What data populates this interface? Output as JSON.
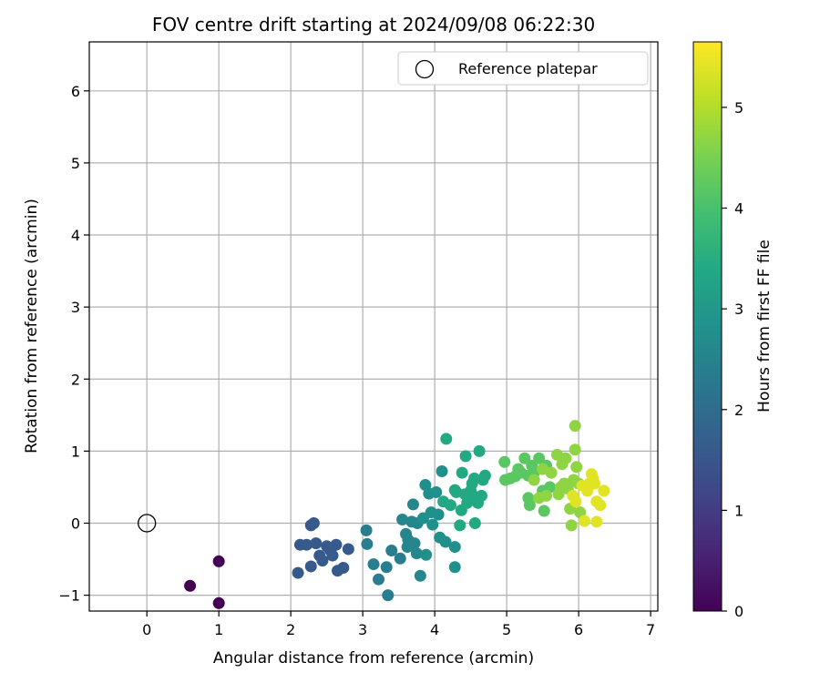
{
  "chart_data": {
    "type": "scatter",
    "title": "FOV centre drift starting at 2024/09/08 06:22:30",
    "xlabel": "Angular distance from reference (arcmin)",
    "ylabel": "Rotation from reference (arcmin)",
    "xlim": [
      -0.8,
      7.1
    ],
    "ylim": [
      -1.22,
      6.68
    ],
    "xticks": [
      0,
      1,
      2,
      3,
      4,
      5,
      6,
      7
    ],
    "yticks": [
      -1,
      0,
      1,
      2,
      3,
      4,
      5,
      6
    ],
    "grid": true,
    "legend": {
      "position": "top-right",
      "entries": [
        "Reference platepar"
      ]
    },
    "reference_point": {
      "x": 0,
      "y": 0,
      "label": "Reference platepar"
    },
    "colorbar": {
      "label": "Hours from first FF file",
      "colormap": "viridis",
      "range": [
        0,
        5.65
      ],
      "ticks": [
        0,
        1,
        2,
        3,
        4,
        5
      ]
    },
    "points": [
      [
        0.6,
        -0.87,
        0.0
      ],
      [
        1.0,
        -0.53,
        0.0
      ],
      [
        1.0,
        -1.11,
        0.0
      ],
      [
        2.1,
        -0.69,
        1.6
      ],
      [
        2.13,
        -0.3,
        1.6
      ],
      [
        2.22,
        -0.3,
        1.6
      ],
      [
        2.28,
        -0.03,
        1.6
      ],
      [
        2.32,
        0.0,
        1.6
      ],
      [
        2.28,
        -0.6,
        1.6
      ],
      [
        2.35,
        -0.28,
        1.6
      ],
      [
        2.4,
        -0.45,
        1.6
      ],
      [
        2.44,
        -0.52,
        1.6
      ],
      [
        2.5,
        -0.32,
        1.6
      ],
      [
        2.55,
        -0.38,
        1.6
      ],
      [
        2.58,
        -0.45,
        1.6
      ],
      [
        2.63,
        -0.3,
        1.6
      ],
      [
        2.65,
        -0.66,
        1.6
      ],
      [
        2.73,
        -0.62,
        1.6
      ],
      [
        2.8,
        -0.36,
        1.6
      ],
      [
        3.05,
        -0.1,
        2.4
      ],
      [
        3.06,
        -0.29,
        2.4
      ],
      [
        3.15,
        -0.57,
        2.4
      ],
      [
        3.22,
        -0.78,
        2.4
      ],
      [
        3.33,
        -0.61,
        2.4
      ],
      [
        3.35,
        -1.0,
        2.4
      ],
      [
        3.4,
        -0.38,
        2.4
      ],
      [
        3.52,
        -0.49,
        2.4
      ],
      [
        3.55,
        0.05,
        2.6
      ],
      [
        3.6,
        -0.15,
        2.6
      ],
      [
        3.63,
        -0.23,
        2.6
      ],
      [
        3.62,
        -0.33,
        2.6
      ],
      [
        3.68,
        0.02,
        2.6
      ],
      [
        3.7,
        0.26,
        2.6
      ],
      [
        3.72,
        -0.28,
        2.6
      ],
      [
        3.75,
        -0.42,
        2.6
      ],
      [
        3.76,
        0.0,
        2.6
      ],
      [
        3.8,
        -0.73,
        2.6
      ],
      [
        3.84,
        0.07,
        2.8
      ],
      [
        3.87,
        0.53,
        2.8
      ],
      [
        3.88,
        -0.44,
        2.8
      ],
      [
        3.92,
        0.41,
        2.8
      ],
      [
        3.95,
        0.15,
        2.8
      ],
      [
        3.97,
        -0.02,
        2.8
      ],
      [
        4.02,
        0.43,
        2.8
      ],
      [
        4.05,
        0.12,
        2.8
      ],
      [
        4.07,
        -0.2,
        2.8
      ],
      [
        4.1,
        0.72,
        2.8
      ],
      [
        4.15,
        -0.26,
        2.8
      ],
      [
        4.28,
        -0.33,
        2.8
      ],
      [
        4.28,
        -0.61,
        2.8
      ],
      [
        4.12,
        0.3,
        3.4
      ],
      [
        4.16,
        1.17,
        3.4
      ],
      [
        4.22,
        0.25,
        3.4
      ],
      [
        4.28,
        0.46,
        3.4
      ],
      [
        4.3,
        0.43,
        3.4
      ],
      [
        4.35,
        -0.03,
        3.4
      ],
      [
        4.37,
        0.18,
        3.4
      ],
      [
        4.38,
        0.7,
        3.4
      ],
      [
        4.42,
        0.4,
        3.4
      ],
      [
        4.43,
        0.93,
        3.4
      ],
      [
        4.45,
        0.28,
        3.4
      ],
      [
        4.48,
        0.35,
        3.4
      ],
      [
        4.5,
        0.45,
        3.4
      ],
      [
        4.52,
        0.55,
        3.4
      ],
      [
        4.55,
        0.62,
        3.4
      ],
      [
        4.56,
        0.0,
        3.4
      ],
      [
        4.58,
        0.36,
        3.4
      ],
      [
        4.6,
        0.28,
        3.4
      ],
      [
        4.62,
        1.0,
        3.4
      ],
      [
        4.65,
        0.38,
        3.4
      ],
      [
        4.67,
        0.6,
        3.4
      ],
      [
        4.7,
        0.66,
        3.4
      ],
      [
        4.97,
        0.85,
        4.2
      ],
      [
        4.98,
        0.6,
        4.2
      ],
      [
        5.05,
        0.62,
        4.2
      ],
      [
        5.12,
        0.65,
        4.2
      ],
      [
        5.16,
        0.75,
        4.2
      ],
      [
        5.2,
        0.7,
        4.2
      ],
      [
        5.25,
        0.9,
        4.2
      ],
      [
        5.3,
        0.66,
        4.2
      ],
      [
        5.3,
        0.35,
        4.2
      ],
      [
        5.32,
        0.25,
        4.2
      ],
      [
        5.35,
        0.8,
        4.2
      ],
      [
        5.38,
        0.7,
        4.2
      ],
      [
        5.45,
        0.9,
        4.2
      ],
      [
        5.5,
        0.45,
        4.2
      ],
      [
        5.52,
        0.17,
        4.2
      ],
      [
        5.55,
        0.8,
        4.2
      ],
      [
        5.6,
        0.5,
        4.2
      ],
      [
        5.38,
        0.6,
        4.7
      ],
      [
        5.45,
        0.35,
        4.7
      ],
      [
        5.5,
        0.75,
        4.7
      ],
      [
        5.55,
        0.38,
        4.7
      ],
      [
        5.62,
        0.7,
        4.7
      ],
      [
        5.7,
        0.95,
        4.7
      ],
      [
        5.72,
        0.4,
        4.7
      ],
      [
        5.75,
        0.5,
        4.7
      ],
      [
        5.77,
        0.82,
        4.7
      ],
      [
        5.8,
        0.55,
        4.7
      ],
      [
        5.82,
        0.9,
        4.7
      ],
      [
        5.85,
        0.48,
        4.7
      ],
      [
        5.88,
        0.2,
        4.7
      ],
      [
        5.9,
        -0.03,
        4.7
      ],
      [
        5.93,
        0.6,
        4.7
      ],
      [
        5.95,
        1.35,
        4.7
      ],
      [
        5.95,
        1.02,
        4.7
      ],
      [
        5.97,
        0.78,
        4.7
      ],
      [
        6.0,
        0.55,
        4.7
      ],
      [
        6.02,
        0.15,
        4.7
      ],
      [
        5.92,
        0.38,
        5.4
      ],
      [
        5.96,
        0.3,
        5.4
      ],
      [
        6.05,
        0.52,
        5.4
      ],
      [
        6.08,
        0.03,
        5.4
      ],
      [
        6.12,
        0.45,
        5.4
      ],
      [
        6.15,
        0.55,
        5.4
      ],
      [
        6.18,
        0.68,
        5.4
      ],
      [
        6.2,
        0.62,
        5.4
      ],
      [
        6.22,
        0.55,
        5.4
      ],
      [
        6.25,
        0.3,
        5.4
      ],
      [
        6.25,
        0.02,
        5.4
      ],
      [
        6.3,
        0.25,
        5.4
      ],
      [
        6.35,
        0.45,
        5.4
      ]
    ]
  }
}
